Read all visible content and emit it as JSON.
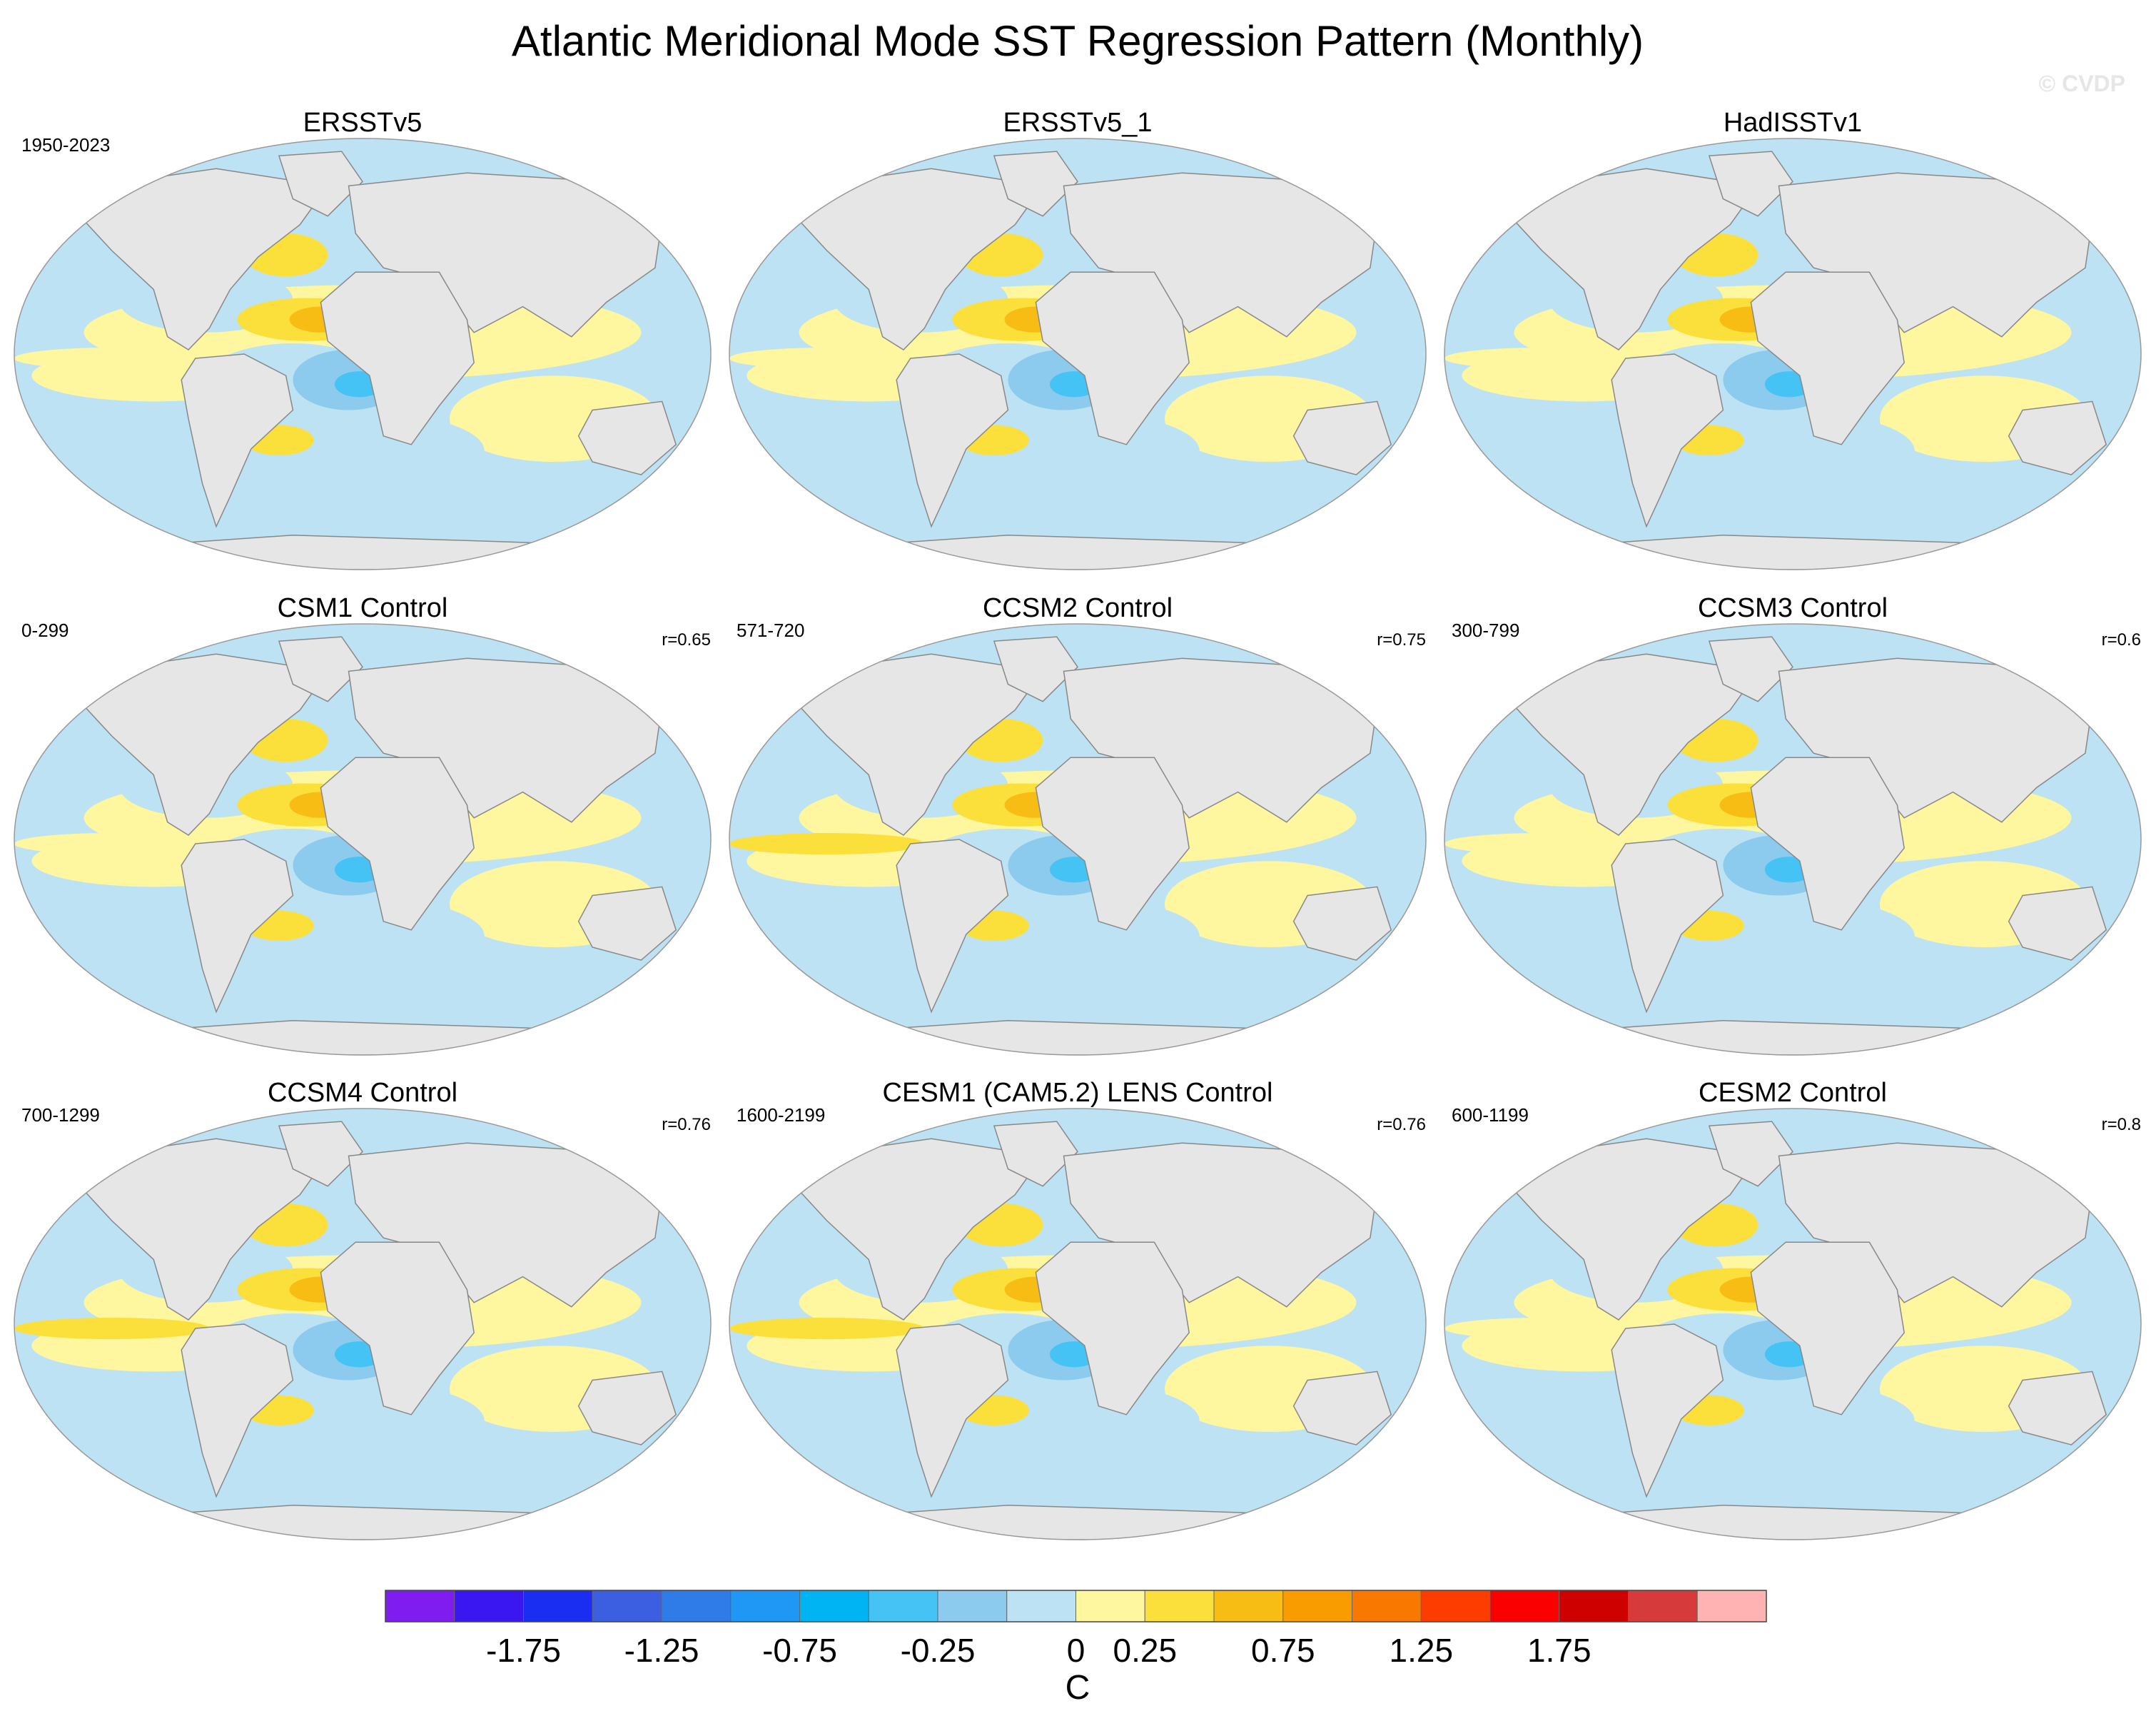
{
  "page": {
    "title": "Atlantic Meridional Mode SST Regression Pattern (Monthly)",
    "watermark": "© CVDP"
  },
  "colors": {
    "ocean_neutral_pos": "#fff6a0",
    "ocean_neutral_neg": "#bde2f3",
    "land": "#e6e6e6",
    "coast": "#888888"
  },
  "chart_data": {
    "type": "heatmap",
    "panels": [
      {
        "title": "ERSSTv5",
        "period": "1950-2023",
        "r": ""
      },
      {
        "title": "ERSSTv5_1",
        "period": "",
        "r": ""
      },
      {
        "title": "HadISSTv1",
        "period": "",
        "r": ""
      },
      {
        "title": "CSM1 Control",
        "period": "0-299",
        "r": "r=0.65"
      },
      {
        "title": "CCSM2 Control",
        "period": "571-720",
        "r": "r=0.75"
      },
      {
        "title": "CCSM3 Control",
        "period": "300-799",
        "r": "r=0.6"
      },
      {
        "title": "CCSM4 Control",
        "period": "700-1299",
        "r": "r=0.76"
      },
      {
        "title": "CESM1 (CAM5.2) LENS Control",
        "period": "1600-2199",
        "r": "r=0.76"
      },
      {
        "title": "CESM2 Control",
        "period": "600-1199",
        "r": "r=0.8"
      }
    ],
    "colorbar": {
      "label": "C",
      "tick_labels": [
        "-1.75",
        "-1.25",
        "-0.75",
        "-0.25",
        "0",
        "0.25",
        "0.75",
        "1.25",
        "1.75"
      ],
      "bins": [
        {
          "color": "#7f1cf0"
        },
        {
          "color": "#3a16f0"
        },
        {
          "color": "#1a2ef2"
        },
        {
          "color": "#3b5fe0"
        },
        {
          "color": "#2f7be8"
        },
        {
          "color": "#1f97f4"
        },
        {
          "color": "#00b4f4"
        },
        {
          "color": "#45c3f4"
        },
        {
          "color": "#8ccbee"
        },
        {
          "color": "#bde2f3"
        },
        {
          "color": "#fff6a0"
        },
        {
          "color": "#fbe03c"
        },
        {
          "color": "#f8bd14"
        },
        {
          "color": "#f89c00"
        },
        {
          "color": "#f97800"
        },
        {
          "color": "#fd3c00"
        },
        {
          "color": "#fa0000"
        },
        {
          "color": "#cf0000"
        },
        {
          "color": "#d63a3a"
        },
        {
          "color": "#ffb3b3"
        }
      ]
    }
  }
}
